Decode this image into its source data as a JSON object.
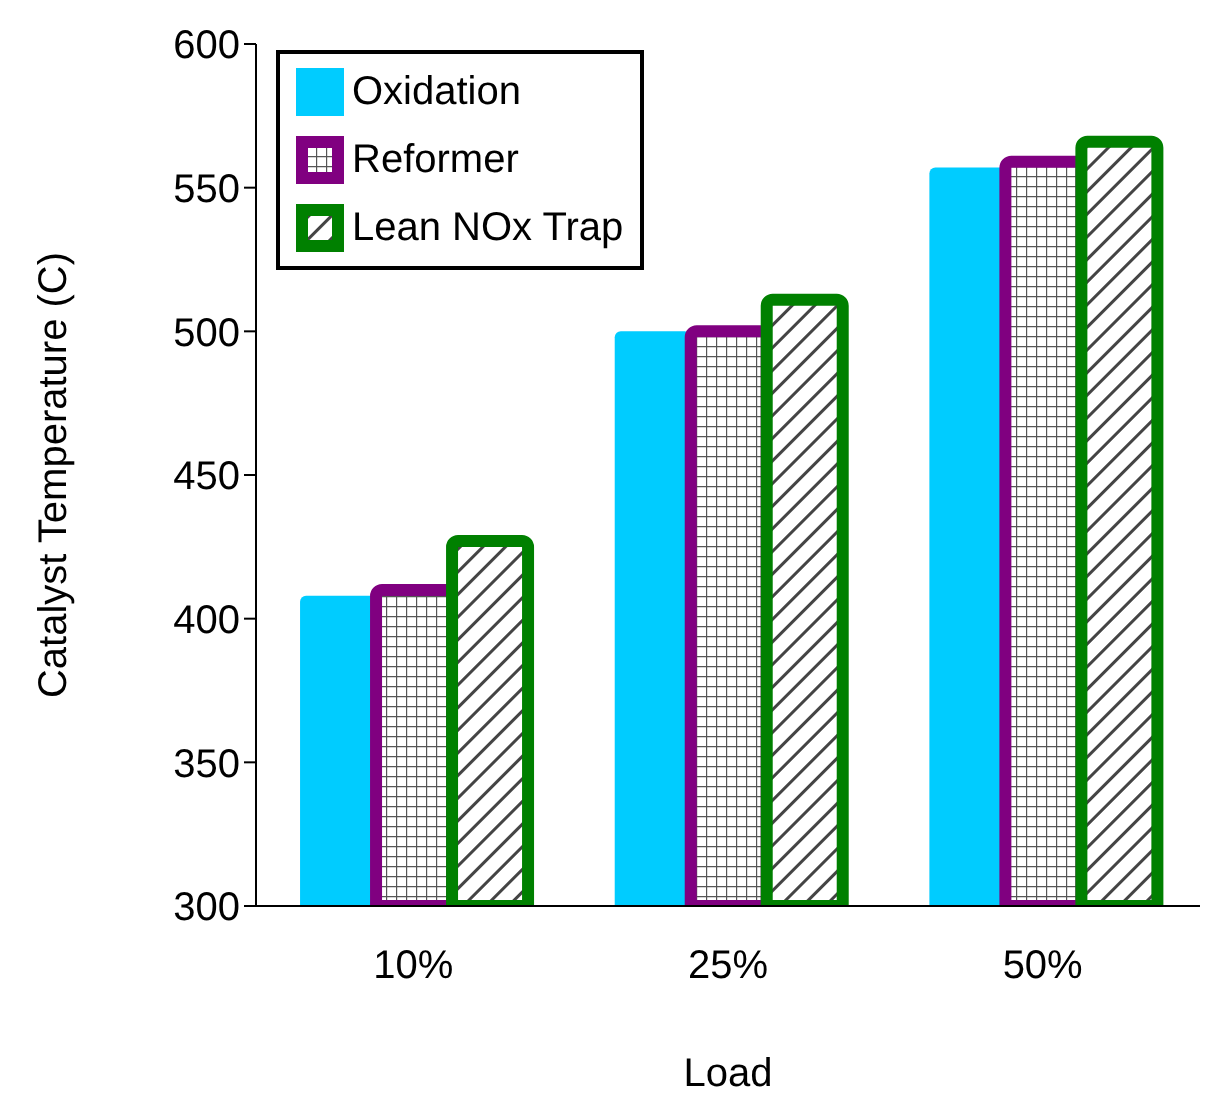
{
  "chart_data": {
    "type": "bar",
    "xlabel": "Load",
    "ylabel": "Catalyst Temperature (C)",
    "categories": [
      "10%",
      "25%",
      "50%"
    ],
    "series": [
      {
        "name": "Oxidation",
        "color": "#00ccff",
        "values": [
          408,
          500,
          557
        ]
      },
      {
        "name": "Reformer",
        "color": "#800080",
        "values": [
          410,
          500,
          559
        ]
      },
      {
        "name": "Lean NOx Trap",
        "color": "#008000",
        "values": [
          427,
          511,
          566
        ]
      }
    ],
    "ylim": [
      300,
      600
    ],
    "yticks": [
      300,
      350,
      400,
      450,
      500,
      550,
      600
    ],
    "grid": false,
    "legend": "top left"
  }
}
